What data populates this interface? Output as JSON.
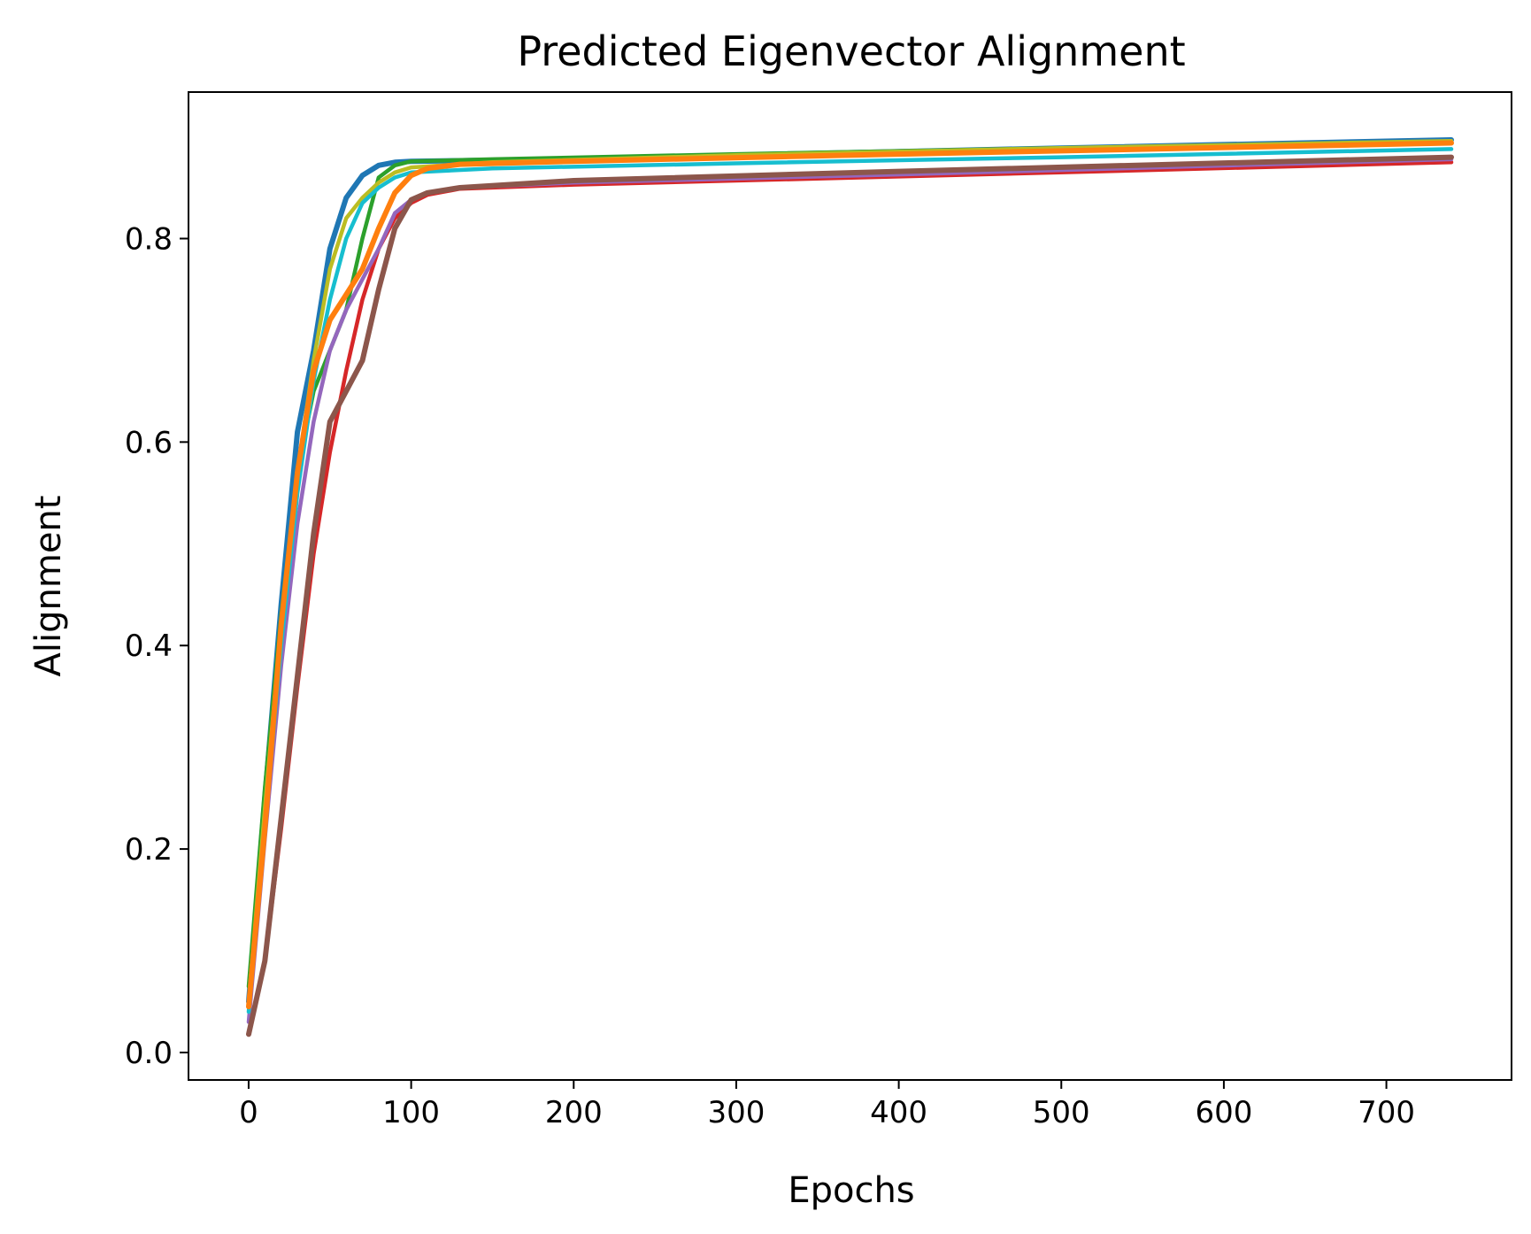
{
  "chart_data": {
    "type": "line",
    "title": "Predicted Eigenvector Alignment",
    "xlabel": "Epochs",
    "ylabel": "Alignment",
    "xlim": [
      -37,
      777
    ],
    "ylim": [
      -0.027,
      0.944
    ],
    "xticks": [
      0,
      100,
      200,
      300,
      400,
      500,
      600,
      700
    ],
    "yticks": [
      0.0,
      0.2,
      0.4,
      0.6,
      0.8
    ],
    "xtick_labels": [
      "0",
      "100",
      "200",
      "300",
      "400",
      "500",
      "600",
      "700"
    ],
    "ytick_labels": [
      "0.0",
      "0.2",
      "0.4",
      "0.6",
      "0.8"
    ],
    "grid": false,
    "legend": "none",
    "series": [
      {
        "color": "#1f77b4",
        "points": [
          [
            0,
            0.05
          ],
          [
            10,
            0.25
          ],
          [
            20,
            0.44
          ],
          [
            30,
            0.61
          ],
          [
            40,
            0.69
          ],
          [
            50,
            0.79
          ],
          [
            60,
            0.84
          ],
          [
            70,
            0.862
          ],
          [
            80,
            0.872
          ],
          [
            90,
            0.875
          ],
          [
            100,
            0.876
          ],
          [
            150,
            0.877
          ],
          [
            300,
            0.882
          ],
          [
            500,
            0.889
          ],
          [
            740,
            0.897
          ]
        ]
      },
      {
        "color": "#2ca02c",
        "points": [
          [
            0,
            0.065
          ],
          [
            10,
            0.26
          ],
          [
            20,
            0.43
          ],
          [
            30,
            0.57
          ],
          [
            40,
            0.65
          ],
          [
            50,
            0.69
          ],
          [
            60,
            0.73
          ],
          [
            70,
            0.8
          ],
          [
            80,
            0.86
          ],
          [
            90,
            0.872
          ],
          [
            100,
            0.876
          ],
          [
            150,
            0.878
          ],
          [
            300,
            0.883
          ],
          [
            500,
            0.889
          ],
          [
            740,
            0.895
          ]
        ]
      },
      {
        "color": "#d62728",
        "points": [
          [
            0,
            0.02
          ],
          [
            10,
            0.09
          ],
          [
            20,
            0.22
          ],
          [
            30,
            0.36
          ],
          [
            40,
            0.49
          ],
          [
            50,
            0.59
          ],
          [
            60,
            0.67
          ],
          [
            70,
            0.74
          ],
          [
            80,
            0.79
          ],
          [
            90,
            0.82
          ],
          [
            100,
            0.835
          ],
          [
            110,
            0.843
          ],
          [
            130,
            0.849
          ],
          [
            200,
            0.853
          ],
          [
            400,
            0.861
          ],
          [
            740,
            0.875
          ]
        ]
      },
      {
        "color": "#9467bd",
        "points": [
          [
            0,
            0.03
          ],
          [
            10,
            0.21
          ],
          [
            20,
            0.38
          ],
          [
            30,
            0.52
          ],
          [
            40,
            0.62
          ],
          [
            50,
            0.69
          ],
          [
            60,
            0.73
          ],
          [
            70,
            0.76
          ],
          [
            80,
            0.79
          ],
          [
            90,
            0.825
          ],
          [
            100,
            0.838
          ],
          [
            110,
            0.845
          ],
          [
            130,
            0.85
          ],
          [
            200,
            0.855
          ],
          [
            400,
            0.863
          ],
          [
            740,
            0.878
          ]
        ]
      },
      {
        "color": "#8c564b",
        "points": [
          [
            0,
            0.018
          ],
          [
            10,
            0.09
          ],
          [
            20,
            0.23
          ],
          [
            30,
            0.37
          ],
          [
            40,
            0.51
          ],
          [
            50,
            0.62
          ],
          [
            60,
            0.65
          ],
          [
            70,
            0.68
          ],
          [
            80,
            0.75
          ],
          [
            90,
            0.81
          ],
          [
            100,
            0.838
          ],
          [
            110,
            0.845
          ],
          [
            130,
            0.85
          ],
          [
            200,
            0.857
          ],
          [
            400,
            0.866
          ],
          [
            740,
            0.88
          ]
        ]
      },
      {
        "color": "#bcbd22",
        "points": [
          [
            0,
            0.05
          ],
          [
            10,
            0.24
          ],
          [
            20,
            0.42
          ],
          [
            30,
            0.57
          ],
          [
            40,
            0.68
          ],
          [
            50,
            0.77
          ],
          [
            60,
            0.82
          ],
          [
            70,
            0.84
          ],
          [
            80,
            0.855
          ],
          [
            90,
            0.865
          ],
          [
            100,
            0.87
          ],
          [
            150,
            0.875
          ],
          [
            300,
            0.882
          ],
          [
            500,
            0.889
          ],
          [
            740,
            0.896
          ]
        ]
      },
      {
        "color": "#17becf",
        "points": [
          [
            0,
            0.04
          ],
          [
            10,
            0.22
          ],
          [
            20,
            0.4
          ],
          [
            30,
            0.55
          ],
          [
            40,
            0.66
          ],
          [
            50,
            0.74
          ],
          [
            60,
            0.8
          ],
          [
            70,
            0.835
          ],
          [
            80,
            0.85
          ],
          [
            90,
            0.86
          ],
          [
            100,
            0.865
          ],
          [
            150,
            0.869
          ],
          [
            300,
            0.874
          ],
          [
            500,
            0.88
          ],
          [
            740,
            0.888
          ]
        ]
      },
      {
        "color": "#ff7f0e",
        "points": [
          [
            0,
            0.045
          ],
          [
            10,
            0.22
          ],
          [
            20,
            0.42
          ],
          [
            30,
            0.57
          ],
          [
            40,
            0.67
          ],
          [
            50,
            0.72
          ],
          [
            60,
            0.745
          ],
          [
            70,
            0.77
          ],
          [
            80,
            0.81
          ],
          [
            90,
            0.845
          ],
          [
            100,
            0.862
          ],
          [
            110,
            0.869
          ],
          [
            130,
            0.873
          ],
          [
            200,
            0.876
          ],
          [
            400,
            0.883
          ],
          [
            740,
            0.894
          ]
        ]
      }
    ]
  }
}
